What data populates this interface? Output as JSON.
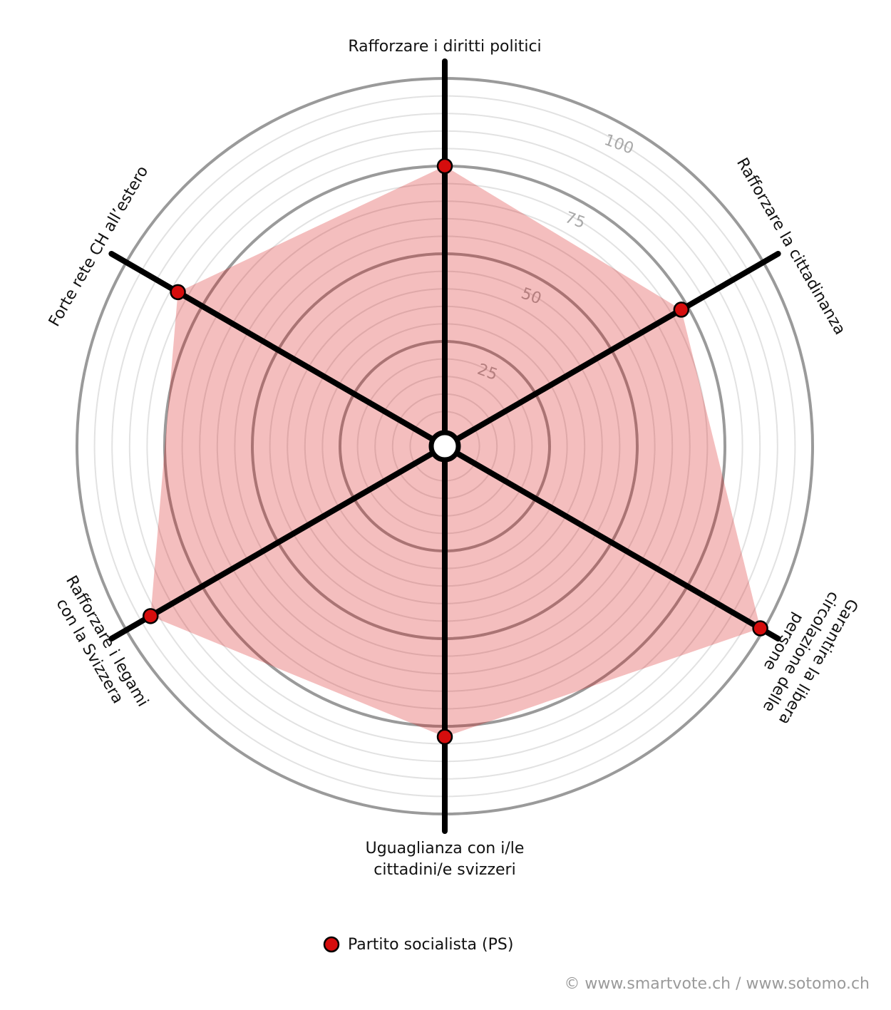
{
  "chart_data": {
    "type": "radar",
    "categories": [
      [
        "Rafforzare i diritti politici"
      ],
      [
        "Rafforzare la cittadinanza"
      ],
      [
        "Garantire la libera",
        "circolazione delle",
        "persone"
      ],
      [
        "Uguaglianza con i/le",
        "cittadini/e svizzeri"
      ],
      [
        "Rafforzare i legami",
        "con la Svizzera"
      ],
      [
        "Forte rete CH all’estero"
      ]
    ],
    "series": [
      {
        "name": "Partito socialista (PS)",
        "color": "#d50d0d",
        "values": [
          75,
          73,
          99,
          78,
          92,
          83
        ]
      }
    ],
    "ylim": [
      0,
      100
    ],
    "yticks": [
      25,
      50,
      75,
      100
    ],
    "minor_yticks": [
      5,
      10,
      15,
      20,
      30,
      35,
      40,
      45,
      55,
      60,
      65,
      70,
      80,
      85,
      90,
      95
    ],
    "grid": true,
    "source": "© www.smartvote.ch / www.sotomo.ch"
  }
}
